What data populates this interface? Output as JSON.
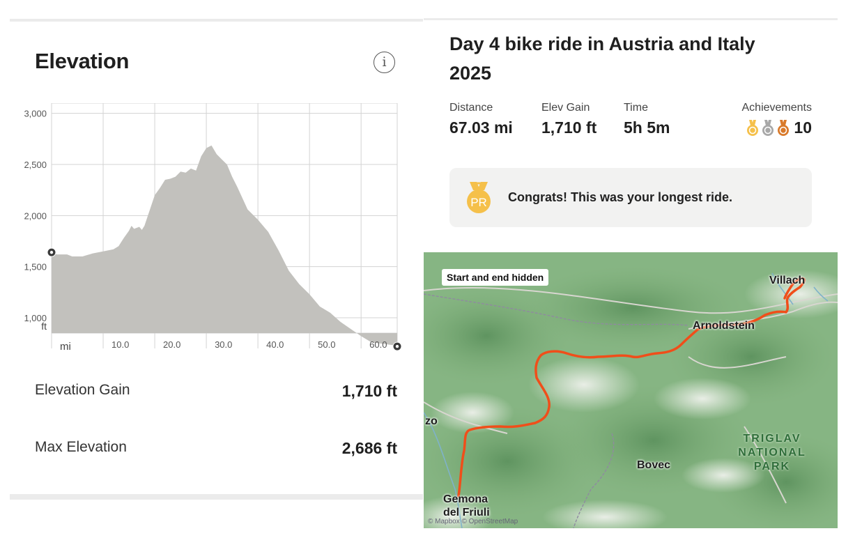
{
  "elevation_panel": {
    "title": "Elevation",
    "info_glyph": "i",
    "stats": [
      {
        "label": "Elevation Gain",
        "value": "1,710 ft"
      },
      {
        "label": "Max Elevation",
        "value": "2,686 ft"
      }
    ]
  },
  "chart_data": {
    "type": "area",
    "title": "",
    "xlabel": "mi",
    "ylabel": "ft",
    "xlim": [
      0,
      67
    ],
    "ylim": [
      850,
      3100
    ],
    "x_ticks": [
      10,
      20,
      30,
      40,
      50,
      60
    ],
    "x_tick_labels": [
      "10.0",
      "20.0",
      "30.0",
      "40.0",
      "50.0",
      "60.0"
    ],
    "y_ticks": [
      1000,
      1500,
      2000,
      2500,
      3000
    ],
    "y_tick_labels": [
      "1,000",
      "1,500",
      "2,000",
      "2,500",
      "3,000"
    ],
    "grid": true,
    "fill_color": "#c2c1bd",
    "series": [
      {
        "x": [
          0,
          1,
          3,
          4,
          6,
          8,
          10,
          12,
          13,
          14,
          15,
          15.5,
          16,
          17,
          17.5,
          18,
          19,
          20,
          21,
          22,
          23,
          24,
          25,
          26,
          27,
          28,
          29,
          30,
          31,
          32,
          33,
          34,
          35,
          36,
          37,
          38,
          40,
          42,
          44,
          46,
          48,
          50,
          52,
          54,
          56,
          58,
          60,
          62,
          65,
          66.5,
          67
        ],
        "y": [
          1640,
          1620,
          1620,
          1600,
          1600,
          1630,
          1650,
          1670,
          1700,
          1780,
          1850,
          1900,
          1870,
          1890,
          1860,
          1900,
          2050,
          2200,
          2270,
          2350,
          2360,
          2380,
          2430,
          2420,
          2460,
          2440,
          2580,
          2660,
          2686,
          2600,
          2550,
          2500,
          2380,
          2280,
          2170,
          2060,
          1960,
          1840,
          1660,
          1460,
          1330,
          1230,
          1110,
          1050,
          960,
          890,
          820,
          760,
          740,
          730,
          720
        ]
      }
    ],
    "markers": [
      {
        "x": 0,
        "y": 1640
      },
      {
        "x": 67,
        "y": 720
      }
    ]
  },
  "activity": {
    "title": "Day 4 bike ride in Austria and Italy 2025",
    "stats": [
      {
        "label": "Distance",
        "value": "67.03 mi"
      },
      {
        "label": "Elev Gain",
        "value": "1,710 ft"
      },
      {
        "label": "Time",
        "value": "5h 5m"
      }
    ],
    "achievements": {
      "label": "Achievements",
      "count": "10",
      "medals": [
        "gold-medal-icon",
        "silver-medal-icon",
        "bronze-medal-icon"
      ]
    },
    "banner": {
      "text": "Congrats! This was your longest ride.",
      "badge": "PR",
      "icon": "pr-medal-icon"
    }
  },
  "map": {
    "chip": "Start and end hidden",
    "labels": [
      "Villach",
      "Arnoldstein",
      "Bovec",
      "Gemona del Friuli",
      "zo"
    ],
    "park": [
      "TRIGLAV",
      "NATIONAL",
      "PARK"
    ],
    "attribution": "© Mapbox © OpenStreetMap",
    "route_color": "#f04e1a"
  },
  "colors": {
    "gold": "#f5c04a",
    "silver": "#a8a8a8",
    "bronze": "#d97a2b"
  }
}
